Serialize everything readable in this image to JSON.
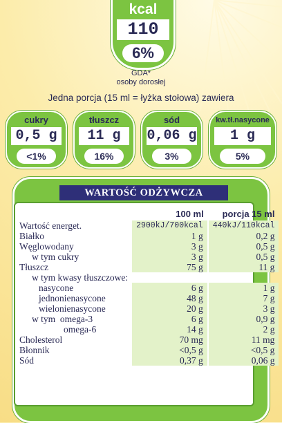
{
  "kcal_badge": {
    "label": "kcal",
    "value": "110",
    "percent": "6%"
  },
  "gda": {
    "line1": "GDA*",
    "line2": "osoby dorosłej"
  },
  "portion_text": "Jedna porcja (15 ml = łyżka stołowa) zawiera",
  "badges": [
    {
      "name": "cukry",
      "value": "0,5 g",
      "percent": "<1%"
    },
    {
      "name": "tłuszcz",
      "value": "11 g",
      "percent": "16%"
    },
    {
      "name": "sód",
      "value": "0,06 g",
      "percent": "3%"
    },
    {
      "name": "kw.tł.nasycone",
      "value": "1 g",
      "percent": "5%"
    }
  ],
  "table": {
    "title": "WARTOŚĆ ODŻYWCZA",
    "headers": {
      "per100": "100 ml",
      "portion": "porcja 15 ml"
    },
    "rows": [
      {
        "name": "Wartość energet.",
        "per100": "2900kJ/700kcal",
        "portion": "440kJ/110kcal"
      },
      {
        "name": "Białko",
        "per100": "1 g",
        "portion": "0,2 g"
      },
      {
        "name": "Węglowodany",
        "per100": "3 g",
        "portion": "0,5 g"
      },
      {
        "name": "w tym cukry",
        "per100": "3 g",
        "portion": "0,5 g"
      },
      {
        "name": "Tłuszcz",
        "per100": "75 g",
        "portion": "11 g"
      },
      {
        "name": "w tym kwasy tłuszczowe:",
        "per100": "",
        "portion": ""
      },
      {
        "name": "nasycone",
        "per100": "6 g",
        "portion": "1 g"
      },
      {
        "name": "jednonienasycone",
        "per100": "48 g",
        "portion": "7 g"
      },
      {
        "name": "wielonienasycone",
        "per100": "20 g",
        "portion": "3 g"
      },
      {
        "name": "w tym  omega-3",
        "per100": "6 g",
        "portion": "0,9 g"
      },
      {
        "name": "omega-6",
        "per100": "14 g",
        "portion": "2 g"
      },
      {
        "name": "Cholesterol",
        "per100": "70 mg",
        "portion": "11 mg"
      },
      {
        "name": "Błonnik",
        "per100": "<0,5 g",
        "portion": "<0,5 g"
      },
      {
        "name": "Sód",
        "per100": "0,37 g",
        "portion": "0,06 g"
      }
    ]
  },
  "colors": {
    "green": "#7cc441",
    "navy": "#2e2f78",
    "text": "#2a2a55",
    "cell": "#e3f2c9",
    "background": "#f8dd86"
  }
}
